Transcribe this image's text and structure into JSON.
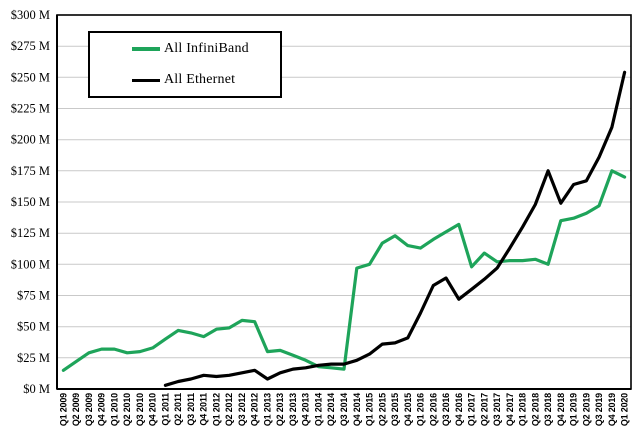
{
  "chart_data": {
    "type": "line",
    "categories": [
      "Q1 2009",
      "Q2 2009",
      "Q3 2009",
      "Q4 2009",
      "Q1 2010",
      "Q2 2010",
      "Q3 2010",
      "Q4 2010",
      "Q1 2011",
      "Q2 2011",
      "Q3 2011",
      "Q4 2011",
      "Q1 2012",
      "Q2 2012",
      "Q3 2012",
      "Q4 2012",
      "Q1 2013",
      "Q2 2013",
      "Q3 2013",
      "Q4 2013",
      "Q1 2014",
      "Q2 2014",
      "Q3 2014",
      "Q4 2014",
      "Q1 2015",
      "Q2 2015",
      "Q3 2015",
      "Q4 2015",
      "Q1 2016",
      "Q2 2016",
      "Q3 2016",
      "Q4 2016",
      "Q1 2017",
      "Q2 2017",
      "Q3 2017",
      "Q4 2017",
      "Q1 2018",
      "Q2 2018",
      "Q3 2018",
      "Q4 2018",
      "Q1 2019",
      "Q2 2019",
      "Q3 2019",
      "Q4 2019",
      "Q1 2020"
    ],
    "series": [
      {
        "name": "All InfiniBand",
        "color": "#1ea45a",
        "values": [
          15,
          22,
          29,
          32,
          32,
          29,
          30,
          33,
          40,
          47,
          45,
          42,
          48,
          49,
          55,
          54,
          30,
          31,
          27,
          23,
          18,
          17,
          16,
          97,
          100,
          117,
          123,
          115,
          113,
          120,
          126,
          132,
          98,
          109,
          102,
          103,
          103,
          104,
          100,
          135,
          137,
          141,
          147,
          175,
          170
        ]
      },
      {
        "name": "All Ethernet",
        "color": "#000000",
        "values": [
          null,
          null,
          null,
          null,
          null,
          null,
          null,
          null,
          3,
          6,
          8,
          11,
          10,
          11,
          13,
          15,
          8,
          13,
          16,
          17,
          19,
          20,
          20,
          23,
          28,
          36,
          37,
          41,
          61,
          83,
          89,
          72,
          80,
          88,
          97,
          113,
          130,
          148,
          175,
          149,
          164,
          167,
          186,
          210,
          254
        ]
      }
    ],
    "y_ticks": {
      "values": [
        0,
        25,
        50,
        75,
        100,
        125,
        150,
        175,
        200,
        225,
        250,
        275,
        300
      ],
      "labels": [
        "$0 M",
        "$25 M",
        "$50 M",
        "$75 M",
        "$100 M",
        "$125 M",
        "$150 M",
        "$175 M",
        "$200 M",
        "$225 M",
        "$250 M",
        "$275 M",
        "$300 M"
      ]
    },
    "ylim": [
      0,
      300
    ],
    "xlabel": "",
    "ylabel": "",
    "grid": true,
    "legend_position": "top-left"
  }
}
